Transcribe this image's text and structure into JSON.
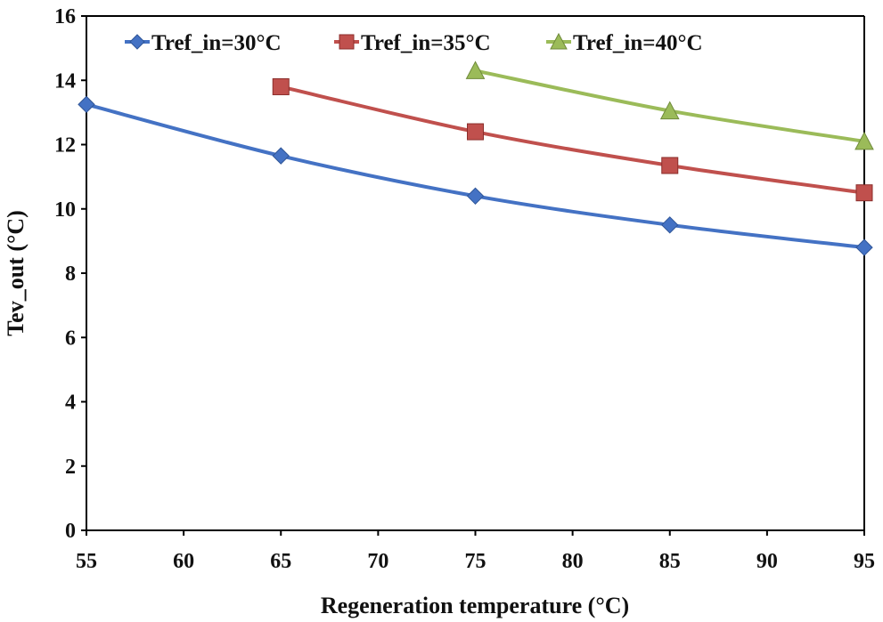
{
  "chart_data": {
    "type": "line",
    "title": "",
    "xlabel": "Regeneration temperature (°C)",
    "ylabel": "Tev_out  (°C)",
    "xlim": [
      55,
      95
    ],
    "ylim": [
      0,
      16
    ],
    "xticks": [
      55,
      60,
      65,
      70,
      75,
      80,
      85,
      90,
      95
    ],
    "yticks": [
      0,
      2,
      4,
      6,
      8,
      10,
      12,
      14,
      16
    ],
    "grid": false,
    "legend_position": "top",
    "series": [
      {
        "name": "Tref_in=30°C",
        "color": "#4472C4",
        "marker": "diamond",
        "x": [
          55,
          65,
          75,
          85,
          95
        ],
        "y": [
          13.25,
          11.65,
          10.4,
          9.5,
          8.8
        ]
      },
      {
        "name": "Tref_in=35°C",
        "color": "#C0504D",
        "marker": "square",
        "x": [
          65,
          75,
          85,
          95
        ],
        "y": [
          13.8,
          12.4,
          11.35,
          10.5
        ]
      },
      {
        "name": "Tref_in=40°C",
        "color": "#9BBB59",
        "marker": "triangle",
        "x": [
          75,
          85,
          95
        ],
        "y": [
          14.3,
          13.05,
          12.1
        ]
      }
    ]
  }
}
